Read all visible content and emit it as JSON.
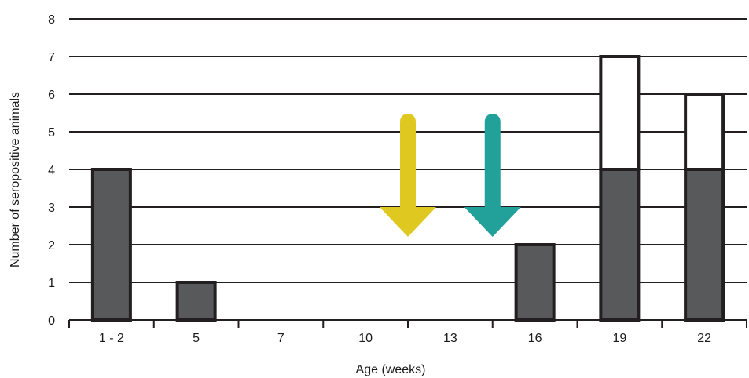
{
  "chart_data": {
    "type": "bar",
    "stacked": true,
    "title": "",
    "xlabel": "Age (weeks)",
    "ylabel": "Number of seropositive animals",
    "categories": [
      "1 - 2",
      "5",
      "7",
      "10",
      "13",
      "16",
      "19",
      "22"
    ],
    "yticks": [
      "0",
      "1",
      "2",
      "3",
      "4",
      "5",
      "6",
      "7",
      "8"
    ],
    "ylim": [
      0,
      8
    ],
    "grid": true,
    "legend": "none",
    "series": [
      {
        "values": [
          4,
          1,
          0,
          0,
          0,
          2,
          4,
          4
        ],
        "color": "#58595b"
      },
      {
        "values": [
          0,
          0,
          0,
          0,
          0,
          0,
          3,
          2
        ],
        "color": "#ffffff"
      }
    ],
    "arrows": [
      {
        "between": [
          "10",
          "13"
        ],
        "color": "#dfc81f",
        "direction": "down"
      },
      {
        "between": [
          "13",
          "16"
        ],
        "color": "#22a09a",
        "direction": "down"
      }
    ],
    "colors": {
      "bar_outline": "#231f20",
      "gridline": "#231f20",
      "text": "#1a1a1a"
    }
  }
}
